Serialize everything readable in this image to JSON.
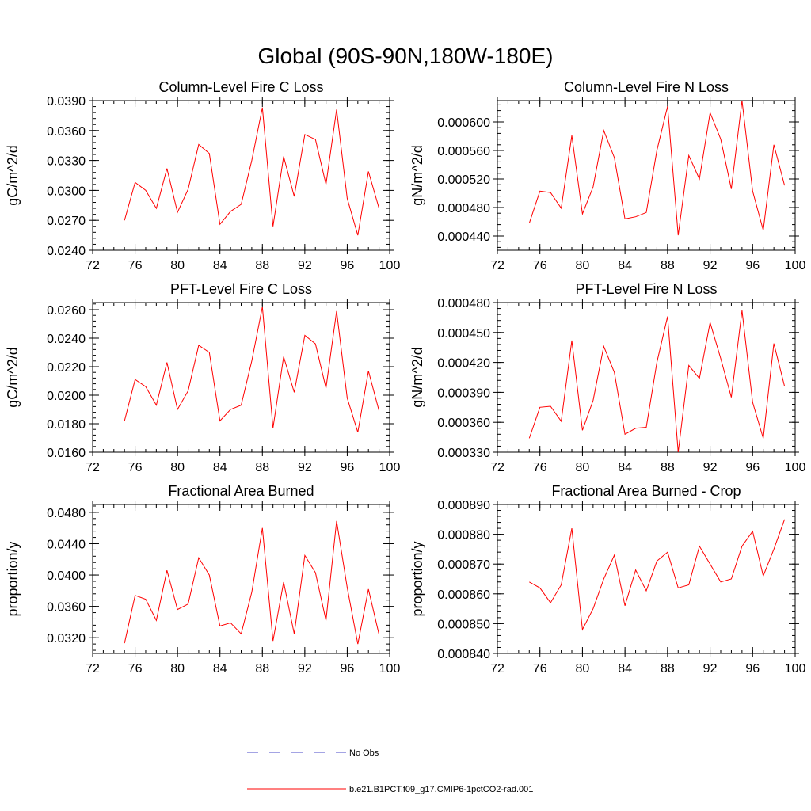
{
  "figure_title": "Global (90S-90N,180W-180E)",
  "legend": {
    "items": [
      {
        "label": "No Obs",
        "color": "#4a4ac8",
        "style": "dashed"
      },
      {
        "label": "b.e21.B1PCT.f09_g17.CMIP6-1pctCO2-rad.001",
        "color": "#ff0000",
        "style": "solid"
      }
    ]
  },
  "chart_data": [
    {
      "type": "line",
      "title": "Column-Level Fire C Loss",
      "ylabel": "gC/m^2/d",
      "xlabel": "",
      "xlim": [
        72,
        100
      ],
      "x_ticks": [
        "72",
        "76",
        "80",
        "84",
        "88",
        "92",
        "96",
        "100"
      ],
      "ylim": [
        0.024,
        0.039
      ],
      "y_ticks": [
        "0.0240",
        "0.0270",
        "0.0300",
        "0.0330",
        "0.0360",
        "0.0390"
      ],
      "series": [
        {
          "color": "#ff0000",
          "x": [
            75,
            76,
            77,
            78,
            79,
            80,
            81,
            82,
            83,
            84,
            85,
            86,
            87,
            88,
            89,
            90,
            91,
            92,
            93,
            94,
            95,
            96,
            97,
            98,
            99
          ],
          "y": [
            0.027,
            0.0308,
            0.03,
            0.0282,
            0.0322,
            0.0278,
            0.0301,
            0.0346,
            0.0337,
            0.0266,
            0.0279,
            0.0286,
            0.033,
            0.0383,
            0.0264,
            0.0334,
            0.0294,
            0.0356,
            0.0351,
            0.0306,
            0.0381,
            0.0292,
            0.0255,
            0.0319,
            0.0282
          ]
        }
      ]
    },
    {
      "type": "line",
      "title": "Column-Level Fire N Loss",
      "ylabel": "gN/m^2/d",
      "xlabel": "",
      "xlim": [
        72,
        100
      ],
      "x_ticks": [
        "72",
        "76",
        "80",
        "84",
        "88",
        "92",
        "96",
        "100"
      ],
      "ylim": [
        0.00042,
        0.00063
      ],
      "y_ticks": [
        "0.000440",
        "0.000480",
        "0.000520",
        "0.000560",
        "0.000600"
      ],
      "series": [
        {
          "color": "#ff0000",
          "x": [
            75,
            76,
            77,
            78,
            79,
            80,
            81,
            82,
            83,
            84,
            85,
            86,
            87,
            88,
            89,
            90,
            91,
            92,
            93,
            94,
            95,
            96,
            97,
            98,
            99
          ],
          "y": [
            0.000458,
            0.000503,
            0.000501,
            0.000479,
            0.000581,
            0.000471,
            0.000509,
            0.000588,
            0.00055,
            0.000464,
            0.000467,
            0.000473,
            0.00056,
            0.000622,
            0.000441,
            0.000553,
            0.00052,
            0.000613,
            0.000576,
            0.000506,
            0.00063,
            0.000503,
            0.000448,
            0.000568,
            0.000511
          ]
        }
      ]
    },
    {
      "type": "line",
      "title": "PFT-Level Fire C Loss",
      "ylabel": "gC/m^2/d",
      "xlabel": "",
      "xlim": [
        72,
        100
      ],
      "x_ticks": [
        "72",
        "76",
        "80",
        "84",
        "88",
        "92",
        "96",
        "100"
      ],
      "ylim": [
        0.016,
        0.0265
      ],
      "y_ticks": [
        "0.0160",
        "0.0180",
        "0.0200",
        "0.0220",
        "0.0240",
        "0.0260"
      ],
      "series": [
        {
          "color": "#ff0000",
          "x": [
            75,
            76,
            77,
            78,
            79,
            80,
            81,
            82,
            83,
            84,
            85,
            86,
            87,
            88,
            89,
            90,
            91,
            92,
            93,
            94,
            95,
            96,
            97,
            98,
            99
          ],
          "y": [
            0.0182,
            0.0211,
            0.0206,
            0.0193,
            0.0223,
            0.019,
            0.0203,
            0.0235,
            0.023,
            0.0182,
            0.019,
            0.0193,
            0.0224,
            0.0262,
            0.0177,
            0.0227,
            0.0202,
            0.0242,
            0.0236,
            0.0205,
            0.0259,
            0.0198,
            0.0174,
            0.0217,
            0.0189
          ]
        }
      ]
    },
    {
      "type": "line",
      "title": "PFT-Level Fire N Loss",
      "ylabel": "gN/m^2/d",
      "xlabel": "",
      "xlim": [
        72,
        100
      ],
      "x_ticks": [
        "72",
        "76",
        "80",
        "84",
        "88",
        "92",
        "96",
        "100"
      ],
      "ylim": [
        0.00033,
        0.00048
      ],
      "y_ticks": [
        "0.000330",
        "0.000360",
        "0.000390",
        "0.000420",
        "0.000450",
        "0.000480"
      ],
      "series": [
        {
          "color": "#ff0000",
          "x": [
            75,
            76,
            77,
            78,
            79,
            80,
            81,
            82,
            83,
            84,
            85,
            86,
            87,
            88,
            89,
            90,
            91,
            92,
            93,
            94,
            95,
            96,
            97,
            98,
            99
          ],
          "y": [
            0.000344,
            0.000375,
            0.000376,
            0.000361,
            0.000442,
            0.000352,
            0.000382,
            0.000436,
            0.00041,
            0.000348,
            0.000354,
            0.000355,
            0.00042,
            0.000466,
            0.00033,
            0.000417,
            0.000404,
            0.00046,
            0.000424,
            0.000385,
            0.000472,
            0.00038,
            0.000344,
            0.000439,
            0.000396
          ]
        }
      ]
    },
    {
      "type": "line",
      "title": "Fractional Area Burned",
      "ylabel": "proportion/y",
      "xlabel": "",
      "xlim": [
        72,
        100
      ],
      "x_ticks": [
        "72",
        "76",
        "80",
        "84",
        "88",
        "92",
        "96",
        "100"
      ],
      "ylim": [
        0.03,
        0.049
      ],
      "y_ticks": [
        "0.0320",
        "0.0360",
        "0.0400",
        "0.0440",
        "0.0480"
      ],
      "series": [
        {
          "color": "#ff0000",
          "x": [
            75,
            76,
            77,
            78,
            79,
            80,
            81,
            82,
            83,
            84,
            85,
            86,
            87,
            88,
            89,
            90,
            91,
            92,
            93,
            94,
            95,
            96,
            97,
            98,
            99
          ],
          "y": [
            0.0313,
            0.0374,
            0.0369,
            0.0342,
            0.0406,
            0.0356,
            0.0363,
            0.0422,
            0.04,
            0.0335,
            0.0339,
            0.0325,
            0.0378,
            0.046,
            0.0316,
            0.0391,
            0.0325,
            0.0425,
            0.0403,
            0.0342,
            0.0469,
            0.0384,
            0.0312,
            0.0382,
            0.0324
          ]
        }
      ]
    },
    {
      "type": "line",
      "title": "Fractional Area Burned - Crop",
      "ylabel": "proportion/y",
      "xlabel": "",
      "xlim": [
        72,
        100
      ],
      "x_ticks": [
        "72",
        "76",
        "80",
        "84",
        "88",
        "92",
        "96",
        "100"
      ],
      "ylim": [
        0.00084,
        0.00089
      ],
      "y_ticks": [
        "0.000840",
        "0.000850",
        "0.000860",
        "0.000870",
        "0.000880",
        "0.000890"
      ],
      "series": [
        {
          "color": "#ff0000",
          "x": [
            75,
            76,
            77,
            78,
            79,
            80,
            81,
            82,
            83,
            84,
            85,
            86,
            87,
            88,
            89,
            90,
            91,
            92,
            93,
            94,
            95,
            96,
            97,
            98,
            99
          ],
          "y": [
            0.000864,
            0.000862,
            0.000857,
            0.000863,
            0.000882,
            0.000848,
            0.000855,
            0.000865,
            0.000873,
            0.000856,
            0.000868,
            0.000861,
            0.000871,
            0.000874,
            0.000862,
            0.000863,
            0.000876,
            0.00087,
            0.000864,
            0.000865,
            0.000876,
            0.000881,
            0.000866,
            0.000875,
            0.000885
          ]
        }
      ]
    }
  ]
}
